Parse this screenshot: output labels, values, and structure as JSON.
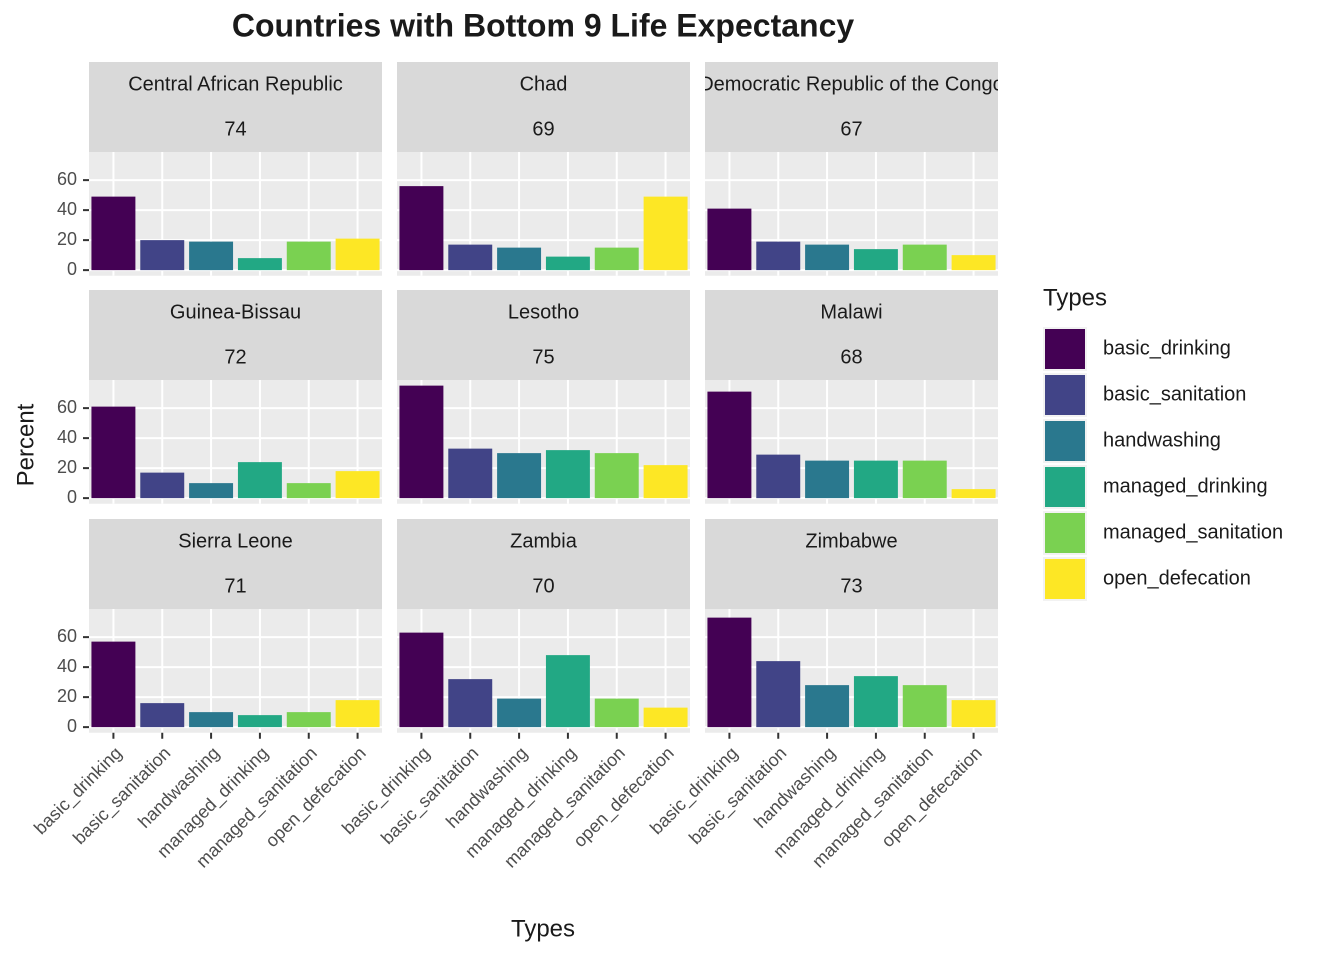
{
  "title": "Countries with Bottom 9 Life Expectancy",
  "chart_data": {
    "type": "bar",
    "x_label": "Types",
    "y_label": "Percent",
    "categories": [
      "basic_drinking",
      "basic_sanitation",
      "handwashing",
      "managed_drinking",
      "managed_sanitation",
      "open_defecation"
    ],
    "colors": [
      "#440154",
      "#414487",
      "#2a788e",
      "#22a884",
      "#7ad151",
      "#fde725"
    ],
    "ylim": [
      -3.75,
      78.75
    ],
    "yticks": [
      0,
      20,
      40,
      60
    ],
    "grid": true,
    "legend": {
      "title": "Types",
      "position": "right"
    },
    "facets": [
      {
        "title": "Central African Republic",
        "subtitle": 74,
        "values": [
          49,
          20,
          19,
          8,
          19,
          21
        ]
      },
      {
        "title": "Chad",
        "subtitle": 69,
        "values": [
          56,
          17,
          15,
          9,
          15,
          49
        ]
      },
      {
        "title": "Democratic Republic of the Congo",
        "subtitle": 67,
        "values": [
          41,
          19,
          17,
          14,
          17,
          10
        ]
      },
      {
        "title": "Guinea-Bissau",
        "subtitle": 72,
        "values": [
          61,
          17,
          10,
          24,
          10,
          18
        ]
      },
      {
        "title": "Lesotho",
        "subtitle": 75,
        "values": [
          75,
          33,
          30,
          32,
          30,
          22
        ]
      },
      {
        "title": "Malawi",
        "subtitle": 68,
        "values": [
          71,
          29,
          25,
          25,
          25,
          6
        ]
      },
      {
        "title": "Sierra Leone",
        "subtitle": 71,
        "values": [
          57,
          16,
          10,
          8,
          10,
          18
        ]
      },
      {
        "title": "Zambia",
        "subtitle": 70,
        "values": [
          63,
          32,
          19,
          48,
          19,
          13
        ]
      },
      {
        "title": "Zimbabwe",
        "subtitle": 73,
        "values": [
          73,
          44,
          28,
          34,
          28,
          18
        ]
      }
    ]
  }
}
